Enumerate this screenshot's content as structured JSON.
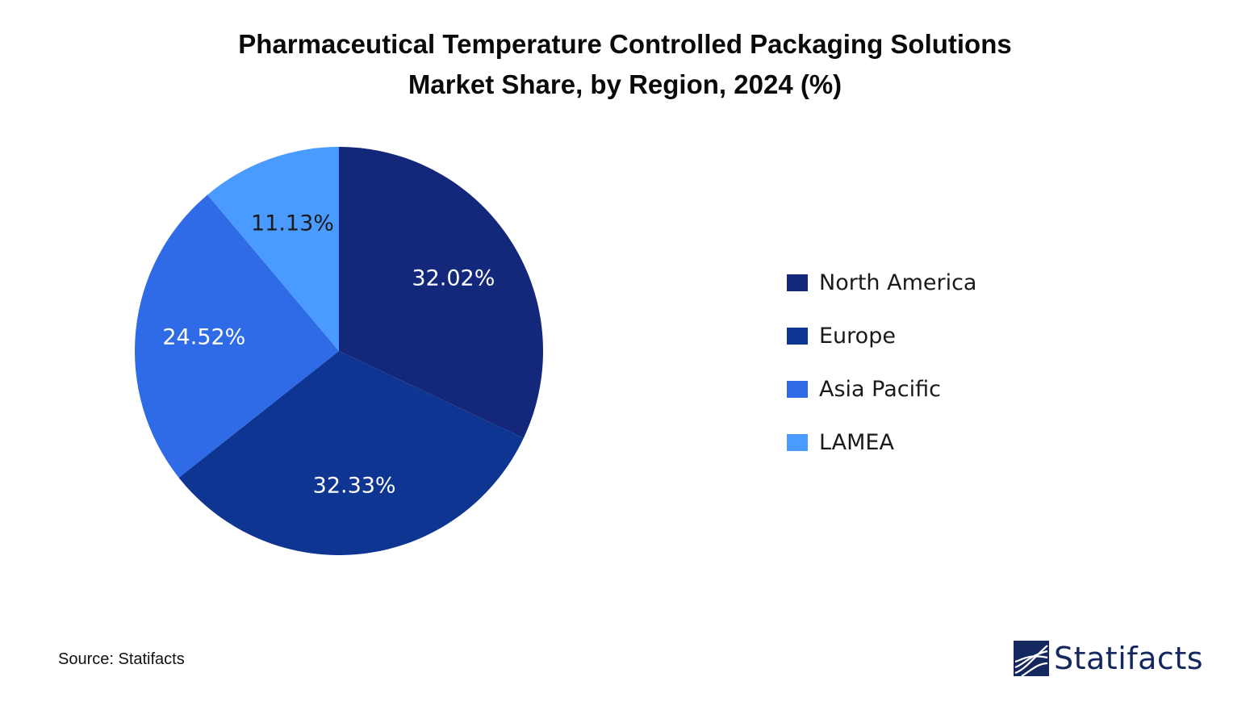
{
  "chart_data": {
    "type": "pie",
    "title_lines": [
      "Pharmaceutical Temperature Controlled Packaging Solutions",
      "Market Share, by Region, 2024 (%)"
    ],
    "categories": [
      "North America",
      "Europe",
      "Asia Pacific",
      "LAMEA"
    ],
    "values": [
      32.02,
      32.33,
      24.52,
      11.13
    ],
    "labels": [
      "32.02%",
      "32.33%",
      "24.52%",
      "11.13%"
    ],
    "colors": [
      "#13287a",
      "#0f3592",
      "#2f6be6",
      "#4a9bff"
    ],
    "label_colors": [
      "#ffffff",
      "#ffffff",
      "#ffffff",
      "#1a1a1a"
    ],
    "start_angle_deg": 0,
    "direction": "clockwise",
    "legend_position": "right"
  },
  "source": "Source: Statifacts",
  "brand": {
    "name": "Statifacts",
    "color": "#14275e"
  }
}
